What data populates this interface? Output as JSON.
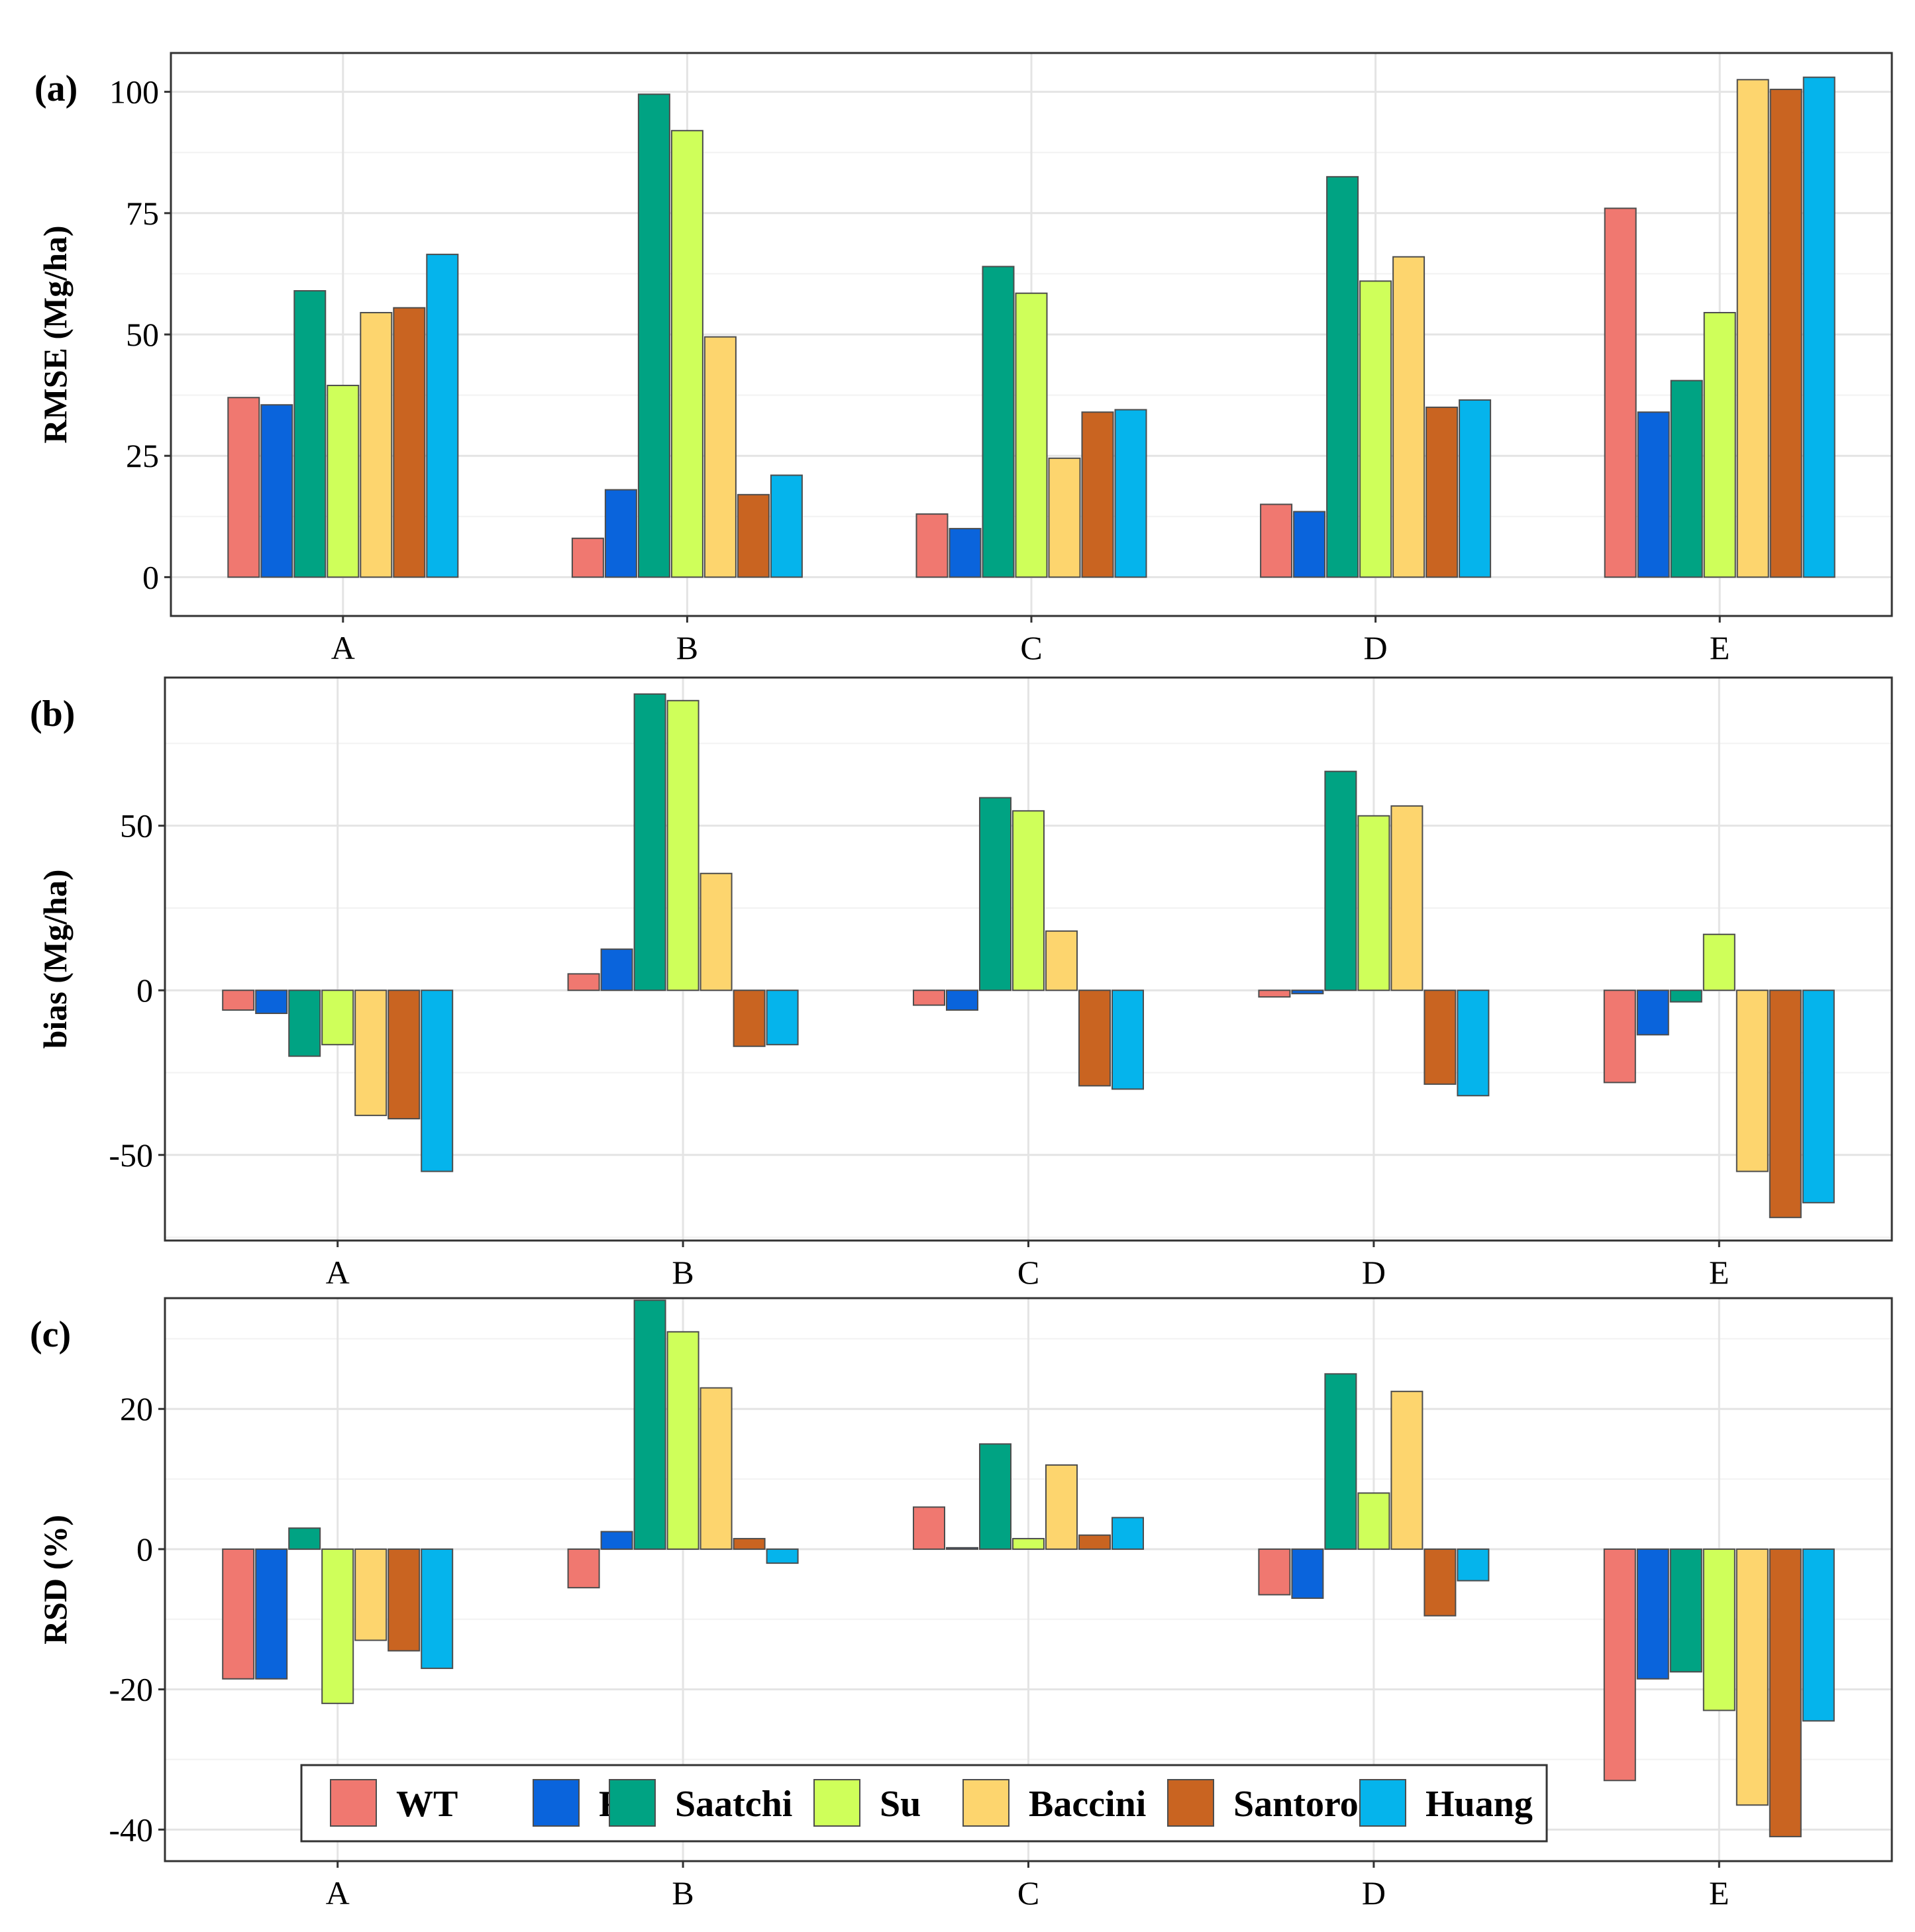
{
  "chart_data": [
    {
      "type": "bar",
      "panel": "(a)",
      "ylabel": "RMSE (Mg/ha)",
      "categories": [
        "A",
        "B",
        "C",
        "D",
        "E"
      ],
      "ylim": [
        -8,
        108
      ],
      "yticks": [
        0,
        25,
        50,
        75,
        100
      ],
      "yticklabels": [
        "0",
        "25",
        "50",
        "75",
        "100"
      ],
      "grid": true,
      "series": [
        {
          "name": "WT",
          "values": [
            37,
            8,
            13,
            15,
            76
          ]
        },
        {
          "name": "RF",
          "values": [
            35.5,
            18,
            10,
            13.5,
            34
          ]
        },
        {
          "name": "Saatchi",
          "values": [
            59,
            99.5,
            64,
            82.5,
            40.5
          ]
        },
        {
          "name": "Su",
          "values": [
            39.5,
            92,
            58.5,
            61,
            54.5
          ]
        },
        {
          "name": "Baccini",
          "values": [
            54.5,
            49.5,
            24.5,
            66,
            102.5
          ]
        },
        {
          "name": "Santoro",
          "values": [
            55.5,
            17,
            34,
            35,
            100.5
          ]
        },
        {
          "name": "Huang",
          "values": [
            66.5,
            21,
            34.5,
            36.5,
            103
          ]
        }
      ]
    },
    {
      "type": "bar",
      "panel": "(b)",
      "ylabel": "bias (Mg/ha)",
      "categories": [
        "A",
        "B",
        "C",
        "D",
        "E"
      ],
      "ylim": [
        -76,
        95
      ],
      "yticks": [
        -50,
        0,
        50
      ],
      "yticklabels": [
        "-50",
        "0",
        "50"
      ],
      "grid": true,
      "series": [
        {
          "name": "WT",
          "values": [
            -6,
            5,
            -4.5,
            -2,
            -28
          ]
        },
        {
          "name": "RF",
          "values": [
            -7,
            12.5,
            -6,
            -1,
            -13.5
          ]
        },
        {
          "name": "Saatchi",
          "values": [
            -20,
            90,
            58.5,
            66.5,
            -3.5
          ]
        },
        {
          "name": "Su",
          "values": [
            -16.5,
            88,
            54.5,
            53,
            17
          ]
        },
        {
          "name": "Baccini",
          "values": [
            -38,
            35.5,
            18,
            56,
            -55
          ]
        },
        {
          "name": "Santoro",
          "values": [
            -39,
            -17,
            -29,
            -28.5,
            -69
          ]
        },
        {
          "name": "Huang",
          "values": [
            -55,
            -16.5,
            -30,
            -32,
            -64.5
          ]
        }
      ]
    },
    {
      "type": "bar",
      "panel": "(c)",
      "ylabel": "RSD (%)",
      "categories": [
        "A",
        "B",
        "C",
        "D",
        "E"
      ],
      "ylim": [
        -44.5,
        35.8
      ],
      "yticks": [
        -40,
        -20,
        0,
        20
      ],
      "yticklabels": [
        "-40",
        "-20",
        "0",
        "20"
      ],
      "grid": true,
      "legend": "bottom-inside",
      "series": [
        {
          "name": "WT",
          "values": [
            -18.5,
            -5.5,
            6,
            -6.5,
            -33
          ]
        },
        {
          "name": "RF",
          "values": [
            -18.5,
            2.5,
            0.2,
            -7,
            -18.5
          ]
        },
        {
          "name": "Saatchi",
          "values": [
            3,
            35.5,
            15,
            25,
            -17.5
          ]
        },
        {
          "name": "Su",
          "values": [
            -22,
            31,
            1.5,
            8,
            -23
          ]
        },
        {
          "name": "Baccini",
          "values": [
            -13,
            23,
            12,
            22.5,
            -36.5
          ]
        },
        {
          "name": "Santoro",
          "values": [
            -14.5,
            1.5,
            2,
            -9.5,
            -41
          ]
        },
        {
          "name": "Huang",
          "values": [
            -17,
            -2,
            4.5,
            -4.5,
            -24.5
          ]
        }
      ]
    }
  ],
  "legend": {
    "items": [
      "WT",
      "RF",
      "Saatchi",
      "Su",
      "Baccini",
      "Santoro",
      "Huang"
    ],
    "position": "bottom-inside"
  },
  "colors": {
    "WT": "#F07870",
    "RF": "#0A64DC",
    "Saatchi": "#00A383",
    "Su": "#CFFF5A",
    "Baccini": "#FDD56E",
    "Santoro": "#C96421",
    "Huang": "#05B4EC"
  }
}
